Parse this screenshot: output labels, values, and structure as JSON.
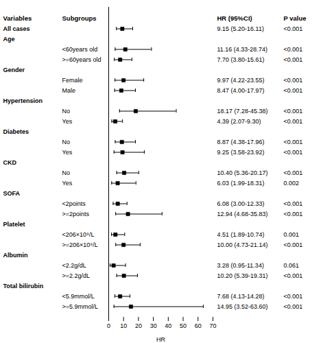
{
  "chart_data": {
    "type": "forest",
    "xlabel": "HR",
    "xlim": [
      0,
      70
    ],
    "xticks": [
      0,
      10,
      20,
      30,
      40,
      50,
      60,
      70
    ],
    "grid": false,
    "color": "black",
    "columns": [
      "Variables",
      "Subgroups",
      "HR (95%CI)",
      "P value"
    ],
    "rows": [
      {
        "variable": "All cases",
        "subgroup": null,
        "value": 9.15,
        "ci_low": 5.2,
        "ci_high": 16.11,
        "value_label": "9.15 (5.20-16.11)",
        "p_label": "<0.001"
      },
      {
        "variable": "Age",
        "subgroup": null,
        "value": null,
        "ci_low": null,
        "ci_high": null,
        "value_label": null,
        "p_label": null
      },
      {
        "variable": null,
        "subgroup": "<60years old",
        "value": 11.16,
        "ci_low": 4.33,
        "ci_high": 28.74,
        "value_label": "11.16 (4.33-28.74)",
        "p_label": "<0.001"
      },
      {
        "variable": null,
        "subgroup": ">=60years old",
        "value": 7.7,
        "ci_low": 3.8,
        "ci_high": 15.61,
        "value_label": "7.70 (3.80-15.61)",
        "p_label": "<0.001"
      },
      {
        "variable": "Gender",
        "subgroup": null,
        "value": null,
        "ci_low": null,
        "ci_high": null,
        "value_label": null,
        "p_label": null
      },
      {
        "variable": null,
        "subgroup": "Female",
        "value": 9.97,
        "ci_low": 4.22,
        "ci_high": 23.55,
        "value_label": "9.97 (4.22-23.55)",
        "p_label": "<0.001"
      },
      {
        "variable": null,
        "subgroup": "Male",
        "value": 8.47,
        "ci_low": 4.0,
        "ci_high": 17.97,
        "value_label": "8.47 (4.00-17.97)",
        "p_label": "<0.001"
      },
      {
        "variable": "Hypertension",
        "subgroup": null,
        "value": null,
        "ci_low": null,
        "ci_high": null,
        "value_label": null,
        "p_label": null
      },
      {
        "variable": null,
        "subgroup": "No",
        "value": 18.17,
        "ci_low": 7.28,
        "ci_high": 45.38,
        "value_label": "18.17 (7.28-45.38)",
        "p_label": "<0.001"
      },
      {
        "variable": null,
        "subgroup": "Yes",
        "value": 4.39,
        "ci_low": 2.07,
        "ci_high": 9.3,
        "value_label": "4.39 (2.07-9.30)",
        "p_label": "<0.001"
      },
      {
        "variable": "Diabetes",
        "subgroup": null,
        "value": null,
        "ci_low": null,
        "ci_high": null,
        "value_label": null,
        "p_label": null
      },
      {
        "variable": null,
        "subgroup": "No",
        "value": 8.87,
        "ci_low": 4.38,
        "ci_high": 17.96,
        "value_label": "8.87 (4.38-17.96)",
        "p_label": "<0.001"
      },
      {
        "variable": null,
        "subgroup": "Yes",
        "value": 9.25,
        "ci_low": 3.58,
        "ci_high": 23.92,
        "value_label": "9.25 (3.58-23.92)",
        "p_label": "<0.001"
      },
      {
        "variable": "CKD",
        "subgroup": null,
        "value": null,
        "ci_low": null,
        "ci_high": null,
        "value_label": null,
        "p_label": null
      },
      {
        "variable": null,
        "subgroup": "No",
        "value": 10.4,
        "ci_low": 5.36,
        "ci_high": 20.17,
        "value_label": "10.40 (5.36-20.17)",
        "p_label": "<0.001"
      },
      {
        "variable": null,
        "subgroup": "Yes",
        "value": 6.03,
        "ci_low": 1.99,
        "ci_high": 18.31,
        "value_label": "6.03 (1.99-18.31)",
        "p_label": "0.002"
      },
      {
        "variable": "SOFA",
        "subgroup": null,
        "value": null,
        "ci_low": null,
        "ci_high": null,
        "value_label": null,
        "p_label": null
      },
      {
        "variable": null,
        "subgroup": "<2points",
        "value": 6.08,
        "ci_low": 3.0,
        "ci_high": 12.33,
        "value_label": "6.08 (3.00-12.33)",
        "p_label": "<0.001"
      },
      {
        "variable": null,
        "subgroup": ">=2points",
        "value": 12.94,
        "ci_low": 4.68,
        "ci_high": 35.83,
        "value_label": "12.94 (4.68-35.83)",
        "p_label": "<0.001"
      },
      {
        "variable": "Platelet",
        "subgroup": null,
        "value": null,
        "ci_low": null,
        "ci_high": null,
        "value_label": null,
        "p_label": null
      },
      {
        "variable": null,
        "subgroup": "<206×10⁹/L",
        "value": 4.51,
        "ci_low": 1.89,
        "ci_high": 10.74,
        "value_label": "4.51 (1.89-10.74)",
        "p_label": "0.001"
      },
      {
        "variable": null,
        "subgroup": ">=206×10⁹/L",
        "value": 10.0,
        "ci_low": 4.73,
        "ci_high": 21.14,
        "value_label": "10.00 (4.73-21.14)",
        "p_label": "<0.001"
      },
      {
        "variable": "Albumin",
        "subgroup": null,
        "value": null,
        "ci_low": null,
        "ci_high": null,
        "value_label": null,
        "p_label": null
      },
      {
        "variable": null,
        "subgroup": "<2.2g/dL",
        "value": 3.28,
        "ci_low": 0.95,
        "ci_high": 11.34,
        "value_label": "3.28 (0.95-11.34)",
        "p_label": "0.061"
      },
      {
        "variable": null,
        "subgroup": ">=2.2g/dL",
        "value": 10.2,
        "ci_low": 5.39,
        "ci_high": 19.31,
        "value_label": "10.20 (5.39-19.31)",
        "p_label": "<0.001"
      },
      {
        "variable": "Total bilirubin",
        "subgroup": null,
        "value": null,
        "ci_low": null,
        "ci_high": null,
        "value_label": null,
        "p_label": null
      },
      {
        "variable": null,
        "subgroup": "<5.9mmol/L",
        "value": 7.68,
        "ci_low": 4.13,
        "ci_high": 14.28,
        "value_label": "7.68 (4.13-14.28)",
        "p_label": "<0.001"
      },
      {
        "variable": null,
        "subgroup": ">=5.9mmol/L",
        "value": 14.95,
        "ci_low": 3.52,
        "ci_high": 63.6,
        "value_label": "14.95 (3.52-63.60)",
        "p_label": "<0.001"
      }
    ]
  }
}
